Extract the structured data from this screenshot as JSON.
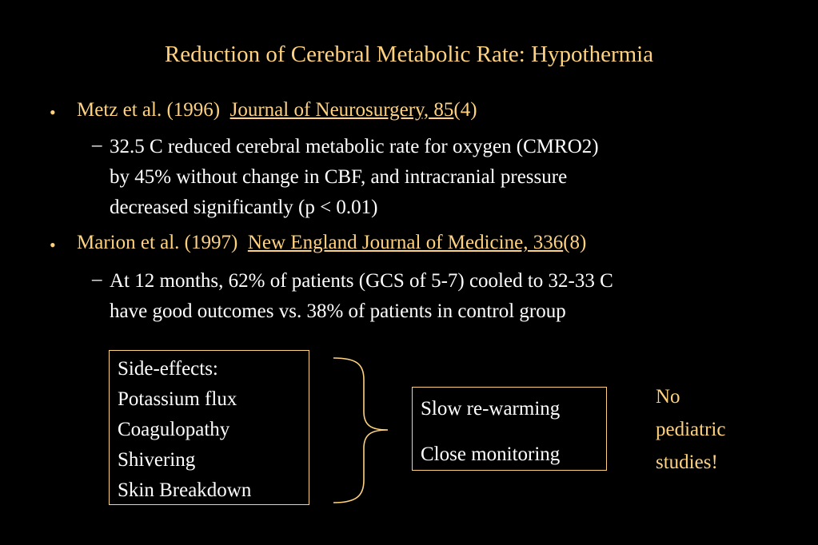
{
  "slide": {
    "title": "Reduction of Cerebral Metabolic Rate: Hypothermia",
    "items": [
      {
        "bullet": "•",
        "author": "Metz et al. (1996)",
        "journal": "Journal of Neurosurgery, 85",
        "issue": "(4)",
        "sub_dash": "–",
        "sub_lines": [
          "32.5 C reduced cerebral metabolic rate for oxygen (CMRO2)",
          "by 45% without change in CBF, and intracranial pressure",
          "decreased significantly (p < 0.01)"
        ]
      },
      {
        "bullet": "•",
        "author": "Marion et al. (1997)",
        "journal": "New England Journal of Medicine, 336",
        "issue": "(8)",
        "sub_dash": "–",
        "sub_lines": [
          "At 12 months, 62% of patients (GCS of 5-7) cooled to 32-33 C",
          "have good outcomes vs. 38% of patients in control group"
        ]
      }
    ],
    "side_effects": {
      "heading": "Side-effects:",
      "items": [
        "Potassium flux",
        "Coagulopathy",
        "Shivering",
        "Skin Breakdown"
      ]
    },
    "management": {
      "items": [
        "Slow re-warming",
        "Close monitoring"
      ]
    },
    "note": {
      "lines": [
        "No",
        "pediatric",
        "studies!"
      ]
    },
    "colors": {
      "background": "#000000",
      "accent": "#ffd27f",
      "body_text": "#ffffff"
    }
  }
}
